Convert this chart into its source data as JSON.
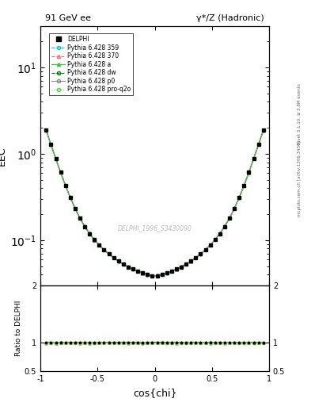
{
  "title_left": "91 GeV ee",
  "title_right": "γ*/Z (Hadronic)",
  "ylabel_main": "EEC",
  "ylabel_ratio": "Ratio to DELPHI",
  "xlabel": "cos{chi}",
  "right_label_top": "Rivet 3.1.10, ≥ 2.8M events",
  "right_label_bot": "mcplots.cern.ch [arXiv:1306.3436]",
  "watermark": "DELPHI_1996_S3430090",
  "ylim_main": [
    0.03,
    30
  ],
  "ylim_ratio": [
    0.5,
    2.0
  ],
  "xlim": [
    -1.0,
    1.0
  ],
  "background_color": "#ffffff"
}
